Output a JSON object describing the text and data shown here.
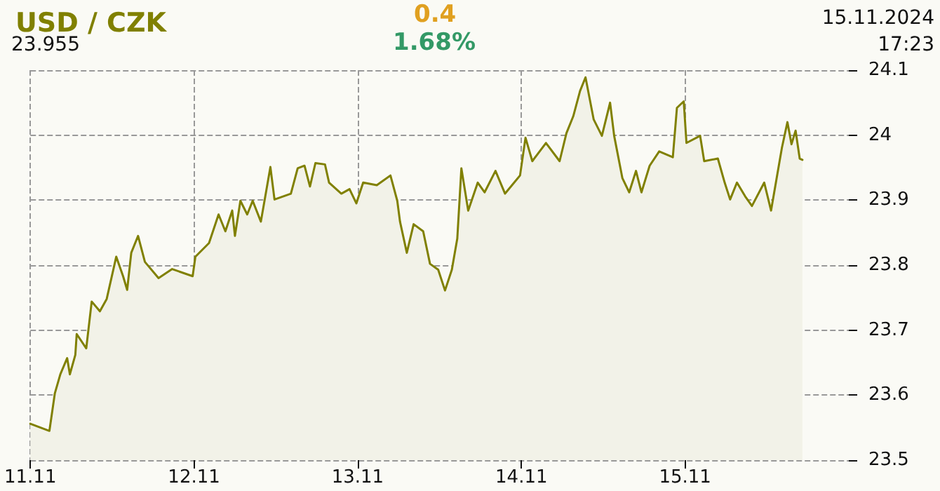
{
  "chart_data": {
    "type": "area",
    "title": "USD / CZK",
    "annotations": [
      "0.4",
      "1.68%",
      "23.955",
      "15.11.2024",
      "17:23"
    ],
    "x": [
      "2024-11-11T00:00",
      "2024-11-11T02:48",
      "2024-11-11T03:36",
      "2024-11-11T04:24",
      "2024-11-11T05:24",
      "2024-11-11T05:48",
      "2024-11-11T06:36",
      "2024-11-11T06:48",
      "2024-11-11T08:12",
      "2024-11-11T09:00",
      "2024-11-11T10:12",
      "2024-11-11T11:12",
      "2024-11-11T12:36",
      "2024-11-11T13:36",
      "2024-11-11T14:12",
      "2024-11-11T14:48",
      "2024-11-11T15:48",
      "2024-11-11T16:48",
      "2024-11-11T18:48",
      "2024-11-11T20:48",
      "2024-11-11T23:48",
      "2024-11-12T00:12",
      "2024-11-12T02:12",
      "2024-11-12T03:36",
      "2024-11-12T04:36",
      "2024-11-12T05:36",
      "2024-11-12T06:00",
      "2024-11-12T06:48",
      "2024-11-12T07:48",
      "2024-11-12T08:36",
      "2024-11-12T09:48",
      "2024-11-12T11:12",
      "2024-11-12T11:48",
      "2024-11-12T14:12",
      "2024-11-12T15:12",
      "2024-11-12T16:12",
      "2024-11-12T17:00",
      "2024-11-12T17:48",
      "2024-11-12T19:12",
      "2024-11-12T19:48",
      "2024-11-12T21:36",
      "2024-11-12T22:48",
      "2024-11-12T23:48",
      "2024-11-13T00:48",
      "2024-11-13T02:48",
      "2024-11-13T04:48",
      "2024-11-13T05:48",
      "2024-11-13T06:12",
      "2024-11-13T07:12",
      "2024-11-13T08:12",
      "2024-11-13T09:36",
      "2024-11-13T10:36",
      "2024-11-13T11:48",
      "2024-11-13T12:48",
      "2024-11-13T13:48",
      "2024-11-13T14:36",
      "2024-11-13T15:12",
      "2024-11-13T16:12",
      "2024-11-13T17:36",
      "2024-11-13T18:36",
      "2024-11-13T20:12",
      "2024-11-13T21:36",
      "2024-11-13T23:48",
      "2024-11-14T00:36",
      "2024-11-14T01:36",
      "2024-11-14T03:36",
      "2024-11-14T05:36",
      "2024-11-14T06:36",
      "2024-11-14T07:36",
      "2024-11-14T08:36",
      "2024-11-14T09:24",
      "2024-11-14T10:36",
      "2024-11-14T11:48",
      "2024-11-14T13:00",
      "2024-11-14T13:36",
      "2024-11-14T14:48",
      "2024-11-14T15:48",
      "2024-11-14T16:48",
      "2024-11-14T17:36",
      "2024-11-14T18:48",
      "2024-11-14T20:12",
      "2024-11-14T22:12",
      "2024-11-14T22:48",
      "2024-11-14T23:48",
      "2024-11-15T00:12",
      "2024-11-15T02:12",
      "2024-11-15T02:48",
      "2024-11-15T04:48",
      "2024-11-15T05:48",
      "2024-11-15T06:36",
      "2024-11-15T07:36",
      "2024-11-15T08:48",
      "2024-11-15T09:48",
      "2024-11-15T11:36",
      "2024-11-15T12:36",
      "2024-11-15T14:12",
      "2024-11-15T15:00",
      "2024-11-15T15:36",
      "2024-11-15T16:12",
      "2024-11-15T16:48",
      "2024-11-15T17:12"
    ],
    "series": [
      {
        "color": "#808000",
        "values": [
          23.556,
          23.545,
          23.603,
          23.632,
          23.657,
          23.632,
          23.662,
          23.694,
          23.672,
          23.744,
          23.729,
          23.748,
          23.813,
          23.783,
          23.762,
          23.819,
          23.845,
          23.805,
          23.78,
          23.794,
          23.783,
          23.813,
          23.834,
          23.878,
          23.852,
          23.884,
          23.845,
          23.899,
          23.878,
          23.899,
          23.867,
          23.951,
          23.901,
          23.91,
          23.949,
          23.953,
          23.921,
          23.957,
          23.955,
          23.927,
          23.91,
          23.917,
          23.895,
          23.927,
          23.923,
          23.938,
          23.899,
          23.867,
          23.819,
          23.863,
          23.852,
          23.802,
          23.793,
          23.761,
          23.793,
          23.841,
          23.949,
          23.884,
          23.927,
          23.912,
          23.945,
          23.91,
          23.938,
          23.996,
          23.96,
          23.988,
          23.96,
          24.003,
          24.029,
          24.068,
          24.089,
          24.024,
          23.999,
          24.05,
          23.999,
          23.934,
          23.912,
          23.945,
          23.912,
          23.953,
          23.975,
          23.966,
          24.042,
          24.052,
          23.988,
          23.999,
          23.96,
          23.964,
          23.927,
          23.901,
          23.927,
          23.906,
          23.891,
          23.927,
          23.884,
          23.981,
          24.02,
          23.986,
          24.007,
          23.964,
          23.962
        ]
      }
    ],
    "xlim": [
      "2024-11-11",
      "2024-11-16"
    ],
    "xticks": [
      {
        "value": "2024-11-11",
        "label": "11.11"
      },
      {
        "value": "2024-11-12",
        "label": "12.11"
      },
      {
        "value": "2024-11-13",
        "label": "13.11"
      },
      {
        "value": "2024-11-14",
        "label": "14.11"
      },
      {
        "value": "2024-11-15",
        "label": "15.11"
      }
    ],
    "ylim": [
      23.5,
      24.1
    ],
    "yticks": [
      23.5,
      23.6,
      23.7,
      23.8,
      23.9,
      24,
      24.1
    ],
    "grid": true,
    "marker": "none",
    "line_style": "solid"
  }
}
